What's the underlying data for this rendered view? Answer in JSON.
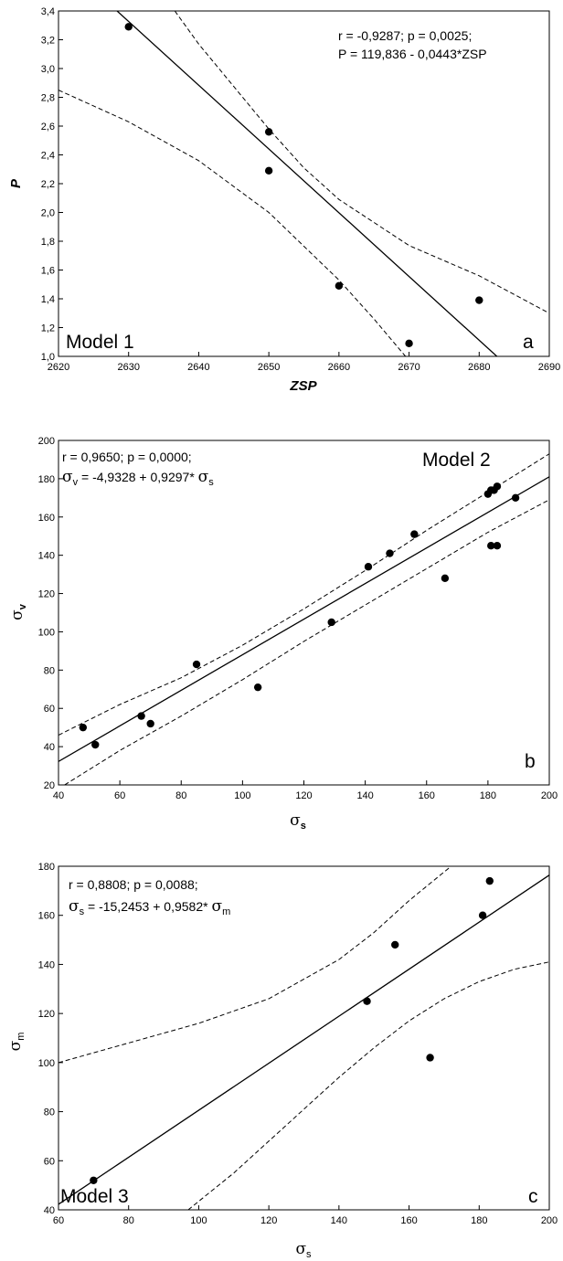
{
  "chart_data": [
    {
      "type": "scatter",
      "panel": "a",
      "model_label": "Model 1",
      "xlabel": "ZSP",
      "ylabel": "P",
      "xlim": [
        2620,
        2690
      ],
      "ylim": [
        1.0,
        3.4
      ],
      "xticks": [
        "2620",
        "2630",
        "2640",
        "2650",
        "2660",
        "2670",
        "2680",
        "2690"
      ],
      "yticks": [
        "1,0",
        "1,2",
        "1,4",
        "1,6",
        "1,8",
        "2,0",
        "2,2",
        "2,4",
        "2,6",
        "2,8",
        "3,0",
        "3,2",
        "3,4"
      ],
      "annotation_line1": "r = -0,9287; p = 0,0025;",
      "annotation_line2": "P = 119,836 - 0,0443*ZSP",
      "points": [
        [
          2630,
          3.29
        ],
        [
          2650,
          2.56
        ],
        [
          2650,
          2.29
        ],
        [
          2660,
          1.49
        ],
        [
          2670,
          1.09
        ],
        [
          2680,
          1.39
        ]
      ],
      "fit": {
        "intercept": 119.836,
        "slope": -0.0443
      },
      "conf_upper": [
        [
          2636.6,
          3.4
        ],
        [
          2640,
          3.17
        ],
        [
          2650,
          2.58
        ],
        [
          2655,
          2.31
        ],
        [
          2660,
          2.09
        ],
        [
          2670,
          1.77
        ],
        [
          2680,
          1.56
        ],
        [
          2690,
          1.3
        ]
      ],
      "conf_lower": [
        [
          2620,
          2.85
        ],
        [
          2630,
          2.63
        ],
        [
          2640,
          2.36
        ],
        [
          2650,
          2.0
        ],
        [
          2660,
          1.53
        ],
        [
          2665,
          1.26
        ],
        [
          2669.5,
          1.0
        ]
      ]
    },
    {
      "type": "scatter",
      "panel": "b",
      "model_label": "Model 2",
      "xlabel_main": "σ",
      "xlabel_sub": "s",
      "ylabel_main": "σ",
      "ylabel_sub": "v",
      "xlim": [
        40,
        200
      ],
      "ylim": [
        20,
        200
      ],
      "xticks": [
        "40",
        "60",
        "80",
        "100",
        "120",
        "140",
        "160",
        "180",
        "200"
      ],
      "yticks": [
        "20",
        "40",
        "60",
        "80",
        "100",
        "120",
        "140",
        "160",
        "180",
        "200"
      ],
      "annotation_line1": "r = 0,9650; p = 0,0000;",
      "annotation_line2_main": "σ",
      "annotation_line2_sub1": "v",
      "annotation_line2_mid": " = -4,9328 + 0,9297* ",
      "annotation_line2_main2": "σ",
      "annotation_line2_sub2": "s",
      "points": [
        [
          48,
          50
        ],
        [
          52,
          41
        ],
        [
          67,
          56
        ],
        [
          70,
          52
        ],
        [
          85,
          83
        ],
        [
          105,
          71
        ],
        [
          129,
          105
        ],
        [
          141,
          134
        ],
        [
          148,
          141
        ],
        [
          156,
          151
        ],
        [
          166,
          128
        ],
        [
          180,
          172
        ],
        [
          181,
          174
        ],
        [
          181,
          145
        ],
        [
          182,
          174
        ],
        [
          183,
          176
        ],
        [
          183,
          145
        ],
        [
          189,
          170
        ]
      ],
      "fit": {
        "intercept": -4.9328,
        "slope": 0.9297
      },
      "conf_upper": [
        [
          40,
          46
        ],
        [
          60,
          62
        ],
        [
          80,
          76
        ],
        [
          100,
          93
        ],
        [
          120,
          112
        ],
        [
          140,
          132
        ],
        [
          160,
          153
        ],
        [
          180,
          173
        ],
        [
          200,
          193
        ]
      ],
      "conf_lower": [
        [
          40,
          18
        ],
        [
          60,
          38
        ],
        [
          80,
          56
        ],
        [
          100,
          75
        ],
        [
          120,
          95
        ],
        [
          140,
          114
        ],
        [
          160,
          133
        ],
        [
          180,
          152
        ],
        [
          200,
          169
        ]
      ]
    },
    {
      "type": "scatter",
      "panel": "c",
      "model_label": "Model 3",
      "xlabel_main": "σ",
      "xlabel_sub": "s",
      "ylabel_main": "σ",
      "ylabel_sub": "m",
      "xlim": [
        60,
        200
      ],
      "ylim": [
        40,
        180
      ],
      "xticks": [
        "60",
        "80",
        "100",
        "120",
        "140",
        "160",
        "180",
        "200"
      ],
      "yticks": [
        "40",
        "60",
        "80",
        "100",
        "120",
        "140",
        "160",
        "180"
      ],
      "annotation_line1": "r = 0,8808; p = 0,0088;",
      "annotation_line2_main": "σ",
      "annotation_line2_sub1": "s",
      "annotation_line2_mid": " = -15,2453 + 0,9582* ",
      "annotation_line2_main2": "σ",
      "annotation_line2_sub2": "m",
      "points": [
        [
          70,
          52
        ],
        [
          148,
          125
        ],
        [
          156,
          148
        ],
        [
          166,
          102
        ],
        [
          181,
          160
        ],
        [
          183,
          174
        ]
      ],
      "fit": {
        "intercept": -15.2453,
        "slope": 0.9582
      },
      "conf_upper": [
        [
          60,
          100
        ],
        [
          80,
          108
        ],
        [
          100,
          116
        ],
        [
          120,
          126
        ],
        [
          140,
          142
        ],
        [
          150,
          153
        ],
        [
          160,
          166
        ],
        [
          172,
          180
        ]
      ],
      "conf_lower": [
        [
          97,
          40
        ],
        [
          110,
          55
        ],
        [
          120,
          68
        ],
        [
          130,
          81
        ],
        [
          140,
          94
        ],
        [
          150,
          106
        ],
        [
          160,
          117
        ],
        [
          170,
          126
        ],
        [
          180,
          133
        ],
        [
          190,
          138
        ],
        [
          200,
          141
        ]
      ]
    }
  ]
}
